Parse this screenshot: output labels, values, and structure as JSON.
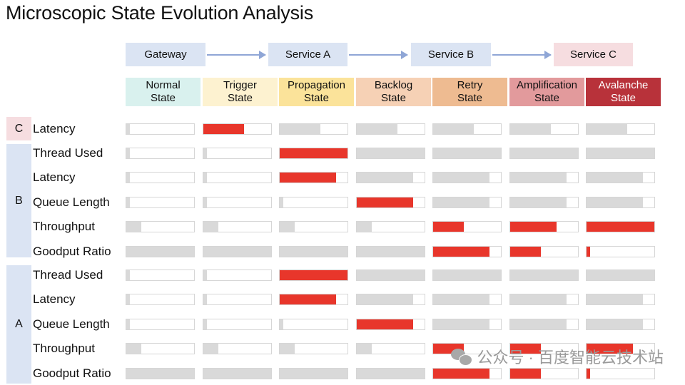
{
  "title": "Microscopic State Evolution Analysis",
  "services": [
    "Gateway",
    "Service A",
    "Service  B",
    "Service  C"
  ],
  "states": [
    {
      "line1": "Normal",
      "line2": "State",
      "bg": "#d9f1ee",
      "fg": "#111111"
    },
    {
      "line1": "Trigger",
      "line2": "State",
      "bg": "#fdf2d0",
      "fg": "#111111"
    },
    {
      "line1": "Propagation",
      "line2": "State",
      "bg": "#fbe39a",
      "fg": "#111111"
    },
    {
      "line1": "Backlog",
      "line2": "State",
      "bg": "#f6d1b5",
      "fg": "#111111"
    },
    {
      "line1": "Retry",
      "line2": "State",
      "bg": "#eebb91",
      "fg": "#111111"
    },
    {
      "line1": "Amplification",
      "line2": "State",
      "bg": "#e29a9c",
      "fg": "#111111"
    },
    {
      "line1": "Avalanche",
      "line2": "State",
      "bg": "#b8323a",
      "fg": "#ffffff"
    }
  ],
  "groups": [
    {
      "letter": "C",
      "color": "#f6dde0"
    },
    {
      "letter": "B",
      "color": "#dbe4f3"
    },
    {
      "letter": "A",
      "color": "#dbe4f3"
    }
  ],
  "rows": [
    {
      "label": "Latency",
      "levels": [
        0.05,
        0.6,
        0.6,
        0.6,
        0.6,
        0.6,
        0.6
      ],
      "alert": [
        false,
        true,
        false,
        false,
        false,
        false,
        false
      ]
    },
    {
      "label": "Thread Used",
      "levels": [
        0.05,
        0.05,
        1.0,
        1.0,
        1.0,
        1.0,
        1.0
      ],
      "alert": [
        false,
        false,
        true,
        false,
        false,
        false,
        false
      ]
    },
    {
      "label": "Latency",
      "levels": [
        0.05,
        0.05,
        0.83,
        0.83,
        0.83,
        0.83,
        0.83
      ],
      "alert": [
        false,
        false,
        true,
        false,
        false,
        false,
        false
      ]
    },
    {
      "label": "Queue Length",
      "levels": [
        0.05,
        0.05,
        0.05,
        0.83,
        0.83,
        0.83,
        0.83
      ],
      "alert": [
        false,
        false,
        false,
        true,
        false,
        false,
        false
      ]
    },
    {
      "label": "Throughput",
      "levels": [
        0.22,
        0.22,
        0.22,
        0.22,
        0.45,
        0.68,
        1.0
      ],
      "alert": [
        false,
        false,
        false,
        false,
        true,
        true,
        true
      ]
    },
    {
      "label": "Goodput Ratio",
      "levels": [
        1.0,
        1.0,
        1.0,
        1.0,
        0.83,
        0.45,
        0.05
      ],
      "alert": [
        false,
        false,
        false,
        false,
        true,
        true,
        true
      ]
    },
    {
      "label": "Thread Used",
      "levels": [
        0.05,
        0.05,
        1.0,
        1.0,
        1.0,
        1.0,
        1.0
      ],
      "alert": [
        false,
        false,
        true,
        false,
        false,
        false,
        false
      ]
    },
    {
      "label": "Latency",
      "levels": [
        0.05,
        0.05,
        0.83,
        0.83,
        0.83,
        0.83,
        0.83
      ],
      "alert": [
        false,
        false,
        true,
        false,
        false,
        false,
        false
      ]
    },
    {
      "label": "Queue Length",
      "levels": [
        0.05,
        0.05,
        0.05,
        0.83,
        0.83,
        0.83,
        0.83
      ],
      "alert": [
        false,
        false,
        false,
        true,
        false,
        false,
        false
      ]
    },
    {
      "label": "Throughput",
      "levels": [
        0.22,
        0.22,
        0.22,
        0.22,
        0.45,
        0.45,
        0.68
      ],
      "alert": [
        false,
        false,
        false,
        false,
        true,
        true,
        true
      ]
    },
    {
      "label": "Goodput Ratio",
      "levels": [
        1.0,
        1.0,
        1.0,
        1.0,
        0.83,
        0.45,
        0.05
      ],
      "alert": [
        false,
        false,
        false,
        false,
        true,
        true,
        true
      ]
    }
  ],
  "colors": {
    "alert": "#e8362b",
    "normal": "#d9d9d9",
    "arrow": "#8fa6d6"
  },
  "watermark": {
    "text": "公众号 · 百度智能云技术站",
    "icon": "wechat-icon"
  }
}
